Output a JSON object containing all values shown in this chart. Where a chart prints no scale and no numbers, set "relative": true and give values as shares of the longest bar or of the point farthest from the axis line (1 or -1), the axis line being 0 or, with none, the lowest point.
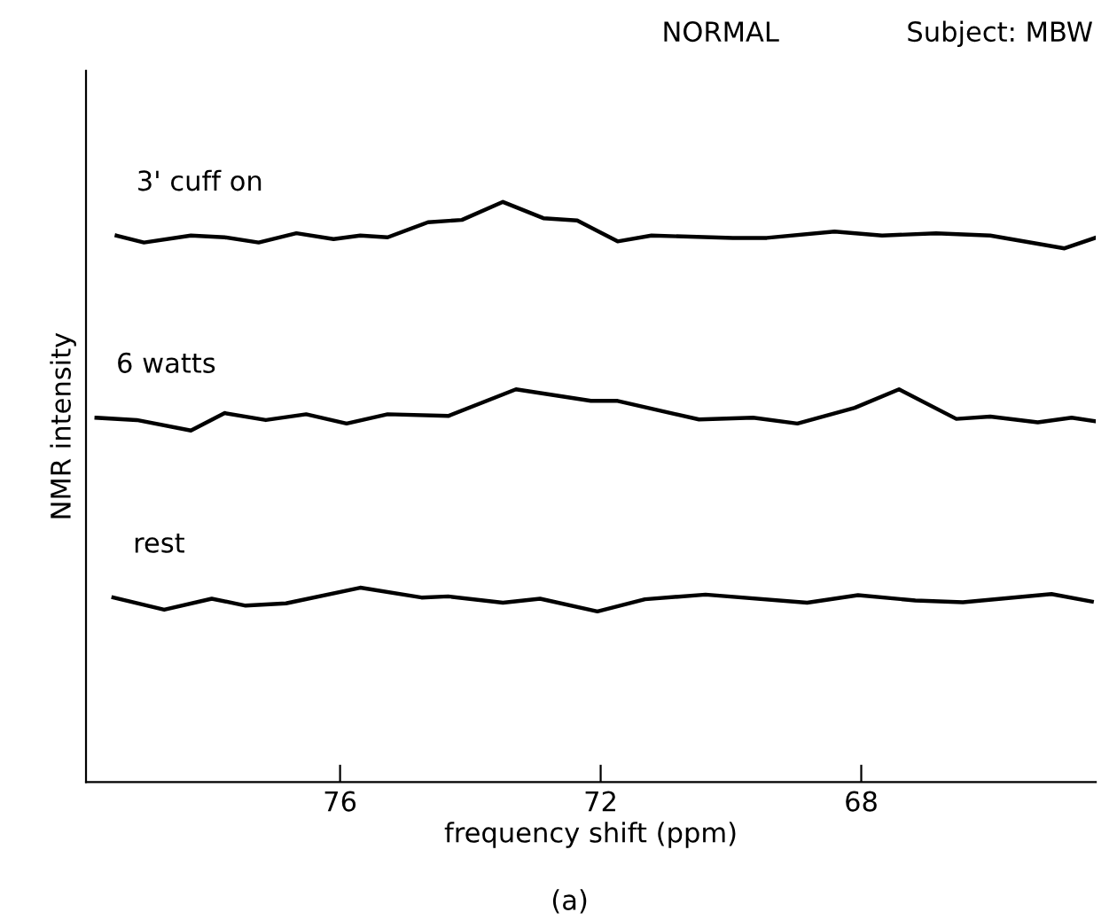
{
  "chart_data": {
    "type": "line",
    "title": "NORMAL",
    "subtitle": "Subject: MBW",
    "xlabel": "frequency shift (ppm)",
    "ylabel": "NMR intensity",
    "annotations": [
      "(a)"
    ],
    "relative": true,
    "xlim": [
      79.9,
      64.4
    ],
    "xticks": [
      76,
      72,
      68
    ],
    "grid": false,
    "legend": false,
    "marker": "none",
    "line_style": "solid",
    "series": [
      {
        "name": "3' cuff on",
        "color": "#000000",
        "x": [
          79.43,
          79.01,
          78.29,
          77.77,
          77.25,
          76.67,
          76.1,
          75.69,
          75.27,
          74.65,
          74.13,
          73.5,
          72.88,
          72.36,
          71.74,
          71.22,
          69.97,
          69.45,
          68.41,
          67.68,
          66.85,
          66.02,
          64.88,
          64.41
        ],
        "values": [
          0.942,
          0.93,
          0.942,
          0.939,
          0.93,
          0.946,
          0.936,
          0.942,
          0.939,
          0.965,
          0.969,
          1.0,
          0.972,
          0.968,
          0.932,
          0.942,
          0.938,
          0.938,
          0.949,
          0.942,
          0.946,
          0.942,
          0.92,
          0.938
        ]
      },
      {
        "name": "6 watts",
        "color": "#000000",
        "x": [
          79.74,
          79.12,
          78.29,
          77.77,
          77.14,
          76.52,
          75.9,
          75.27,
          74.34,
          73.3,
          72.15,
          71.74,
          70.49,
          69.66,
          68.98,
          68.1,
          67.42,
          66.54,
          66.02,
          65.29,
          64.77,
          64.41
        ],
        "values": [
          0.628,
          0.624,
          0.606,
          0.636,
          0.624,
          0.634,
          0.618,
          0.634,
          0.631,
          0.677,
          0.657,
          0.657,
          0.625,
          0.628,
          0.618,
          0.645,
          0.677,
          0.626,
          0.63,
          0.62,
          0.628,
          0.622
        ]
      },
      {
        "name": "rest",
        "color": "#000000",
        "x": [
          79.48,
          78.7,
          77.97,
          77.45,
          76.83,
          75.69,
          74.75,
          74.34,
          73.5,
          72.93,
          72.05,
          71.32,
          70.39,
          68.83,
          68.05,
          67.17,
          66.44,
          65.08,
          64.46
        ],
        "values": [
          0.318,
          0.297,
          0.316,
          0.304,
          0.308,
          0.335,
          0.318,
          0.32,
          0.309,
          0.316,
          0.294,
          0.315,
          0.323,
          0.309,
          0.322,
          0.313,
          0.31,
          0.324,
          0.311
        ]
      }
    ]
  }
}
